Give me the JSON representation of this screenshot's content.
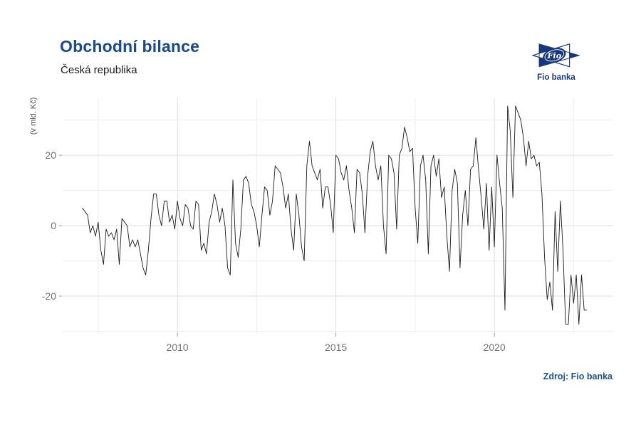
{
  "header": {
    "title": "Obchodní bilance",
    "subtitle": "Česká republika"
  },
  "logo": {
    "text": "Fio",
    "caption": "Fio banka"
  },
  "source": {
    "label": "Zdroj: Fio banka"
  },
  "colors": {
    "accent": "#17479e",
    "logo_navy": "#16377f",
    "source_blue": "#1d4f9e",
    "grid_major": "#dddddd",
    "grid_minor": "#ededed",
    "tick": "#999999",
    "tick_label": "#737373",
    "line": "#1a1a1a",
    "background": "#ffffff"
  },
  "chart_data": {
    "type": "line",
    "title": "Obchodní bilance",
    "subtitle": "Česká republika",
    "xlabel": "",
    "ylabel": "(v mld. Kč)",
    "unit": "mld. Kč",
    "frequency": "monthly",
    "x_start": 2007.0,
    "x_end": 2022.92,
    "xlim": [
      2006.38,
      2023.75
    ],
    "ylim": [
      -30.5,
      36.2
    ],
    "grid": true,
    "legend": "none",
    "x_tick_years": [
      2010,
      2015,
      2020
    ],
    "x_tick_labels": [
      "2010",
      "2015",
      "2020"
    ],
    "x_minor_years": [
      2007.5,
      2012.5,
      2017.5,
      2022.5
    ],
    "y_ticks": [
      -20,
      0,
      20
    ],
    "y_tick_labels": [
      "-20",
      "0",
      "20"
    ],
    "y_minor_ticks": [
      -30,
      -10,
      10,
      30
    ],
    "series": [
      {
        "name": "Obchodní bilance ČR (v mld. Kč)",
        "values": [
          5,
          4,
          3,
          -2,
          0,
          -3,
          1,
          -7,
          -11,
          -1,
          -3,
          -2,
          -4,
          -1,
          -11,
          2,
          1,
          0,
          -6,
          -4,
          -6,
          -4,
          -8,
          -12,
          -14,
          -7,
          2,
          9,
          9,
          3,
          0,
          7,
          7,
          1,
          3,
          -1,
          7,
          2,
          0,
          6,
          5,
          0,
          -1,
          7,
          6,
          -7,
          -5,
          -8,
          1,
          4,
          9,
          6,
          1,
          5,
          0,
          -12,
          -14,
          13,
          -5,
          -9,
          -1,
          13,
          14,
          12,
          6,
          4,
          0,
          -6,
          3,
          11,
          10,
          3,
          7,
          17,
          16,
          15,
          11,
          5,
          9,
          -1,
          -7,
          9,
          3,
          -6,
          -10,
          17,
          24,
          17,
          15,
          13,
          16,
          5,
          11,
          11,
          6,
          -2,
          20,
          19,
          15,
          13,
          17,
          10,
          5,
          -2,
          16,
          15,
          9,
          -2,
          14,
          21,
          24,
          17,
          13,
          17,
          0,
          -8,
          20,
          19,
          15,
          -1,
          20,
          22,
          28,
          25,
          21,
          22,
          5,
          -5,
          17,
          20,
          13,
          -8,
          17,
          20,
          14,
          19,
          8,
          11,
          -3,
          -13,
          10,
          16,
          12,
          -12,
          3,
          10,
          0,
          16,
          17,
          25,
          16,
          8,
          -1,
          12,
          -7,
          11,
          -6,
          20,
          12,
          5,
          -24,
          34,
          27,
          8,
          34,
          32,
          30,
          25,
          17,
          24,
          19,
          20,
          17,
          18,
          9,
          -9,
          -21,
          -16,
          -24,
          4,
          -13,
          7,
          -7,
          -28,
          -28,
          -14,
          -22,
          -14,
          -28,
          -14,
          -24,
          -24
        ]
      }
    ]
  }
}
